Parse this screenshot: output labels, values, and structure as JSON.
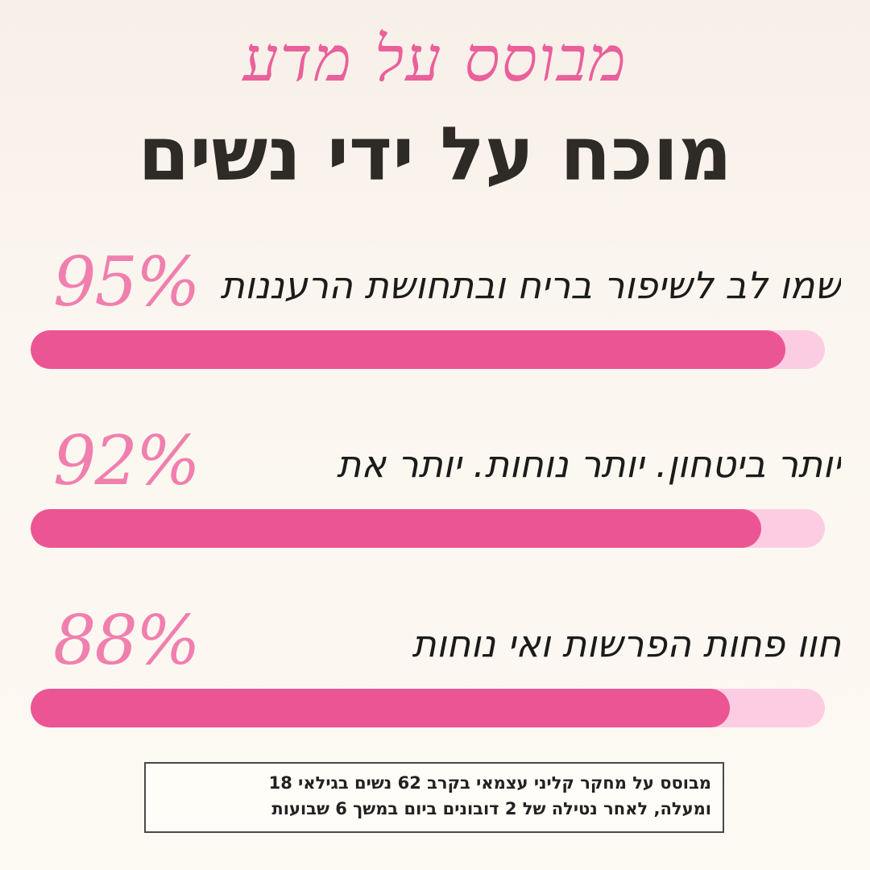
{
  "header": {
    "script_title": "מבוסס על מדע",
    "main_title": "מוכח על ידי נשים"
  },
  "stats": [
    {
      "percent": "95%",
      "text": "שמו לב לשיפור בריח ובתחושת הרעננות",
      "fill_fraction": 0.95
    },
    {
      "percent": "92%",
      "text": "יותר ביטחון. יותר נוחות. יותר את",
      "fill_fraction": 0.92
    },
    {
      "percent": "88%",
      "text": "חוו פחות הפרשות ואי נוחות",
      "fill_fraction": 0.88
    }
  ],
  "footnote": {
    "line1": "מבוסס על מחקר קליני עצמאי בקרב 62 נשים בגילאי 18",
    "line2": "ומעלה, לאחר נטילה של 2 דובונים ביום במשך 6 שבועות"
  },
  "colors": {
    "accent_pink": "#ec5593",
    "track_pink": "#fccde2",
    "percent_pink": "#f07fae",
    "title_dark": "#2e2b26"
  }
}
